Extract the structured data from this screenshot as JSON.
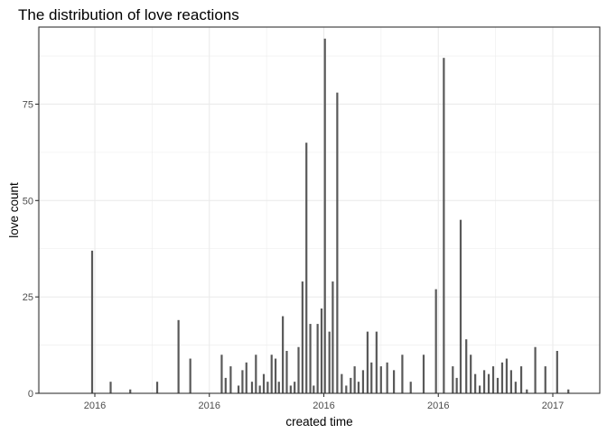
{
  "chart_data": {
    "type": "bar",
    "title": "The distribution of love reactions",
    "xlabel": "created time",
    "ylabel": "love count",
    "ylim": [
      0,
      95
    ],
    "y_ticks": [
      0,
      25,
      50,
      75
    ],
    "x_ticks": [
      "2016",
      "2016",
      "2016",
      "2016",
      "2017"
    ],
    "grid": true,
    "legend": "none",
    "bar_color": "#595959",
    "panel_border_color": "#333333",
    "grid_color": "#ebebeb",
    "series": [
      {
        "x": [
          0.095,
          0.128,
          0.163,
          0.211,
          0.249,
          0.27,
          0.326,
          0.333,
          0.342,
          0.356,
          0.363,
          0.37,
          0.38,
          0.387,
          0.394,
          0.401,
          0.408,
          0.415,
          0.422,
          0.428,
          0.435,
          0.442,
          0.449,
          0.456,
          0.463,
          0.47,
          0.477,
          0.484,
          0.49,
          0.497,
          0.504,
          0.51,
          0.518,
          0.524,
          0.532,
          0.54,
          0.548,
          0.556,
          0.563,
          0.57,
          0.578,
          0.586,
          0.593,
          0.602,
          0.61,
          0.621,
          0.633,
          0.648,
          0.663,
          0.686,
          0.708,
          0.722,
          0.738,
          0.745,
          0.752,
          0.762,
          0.77,
          0.778,
          0.786,
          0.794,
          0.802,
          0.81,
          0.818,
          0.826,
          0.834,
          0.842,
          0.85,
          0.86,
          0.87,
          0.885,
          0.903,
          0.924,
          0.944
        ],
        "values": [
          37,
          3,
          1,
          3,
          19,
          9,
          10,
          4,
          7,
          2,
          6,
          8,
          3,
          10,
          2,
          5,
          3,
          10,
          9,
          3,
          20,
          11,
          2,
          3,
          12,
          29,
          65,
          18,
          2,
          18,
          22,
          92,
          16,
          29,
          78,
          5,
          2,
          4,
          7,
          3,
          6,
          16,
          8,
          16,
          7,
          8,
          6,
          10,
          3,
          10,
          27,
          87,
          7,
          4,
          45,
          14,
          10,
          5,
          2,
          6,
          5,
          7,
          4,
          8,
          9,
          6,
          3,
          7,
          1,
          12,
          7,
          11,
          1
        ]
      }
    ]
  }
}
